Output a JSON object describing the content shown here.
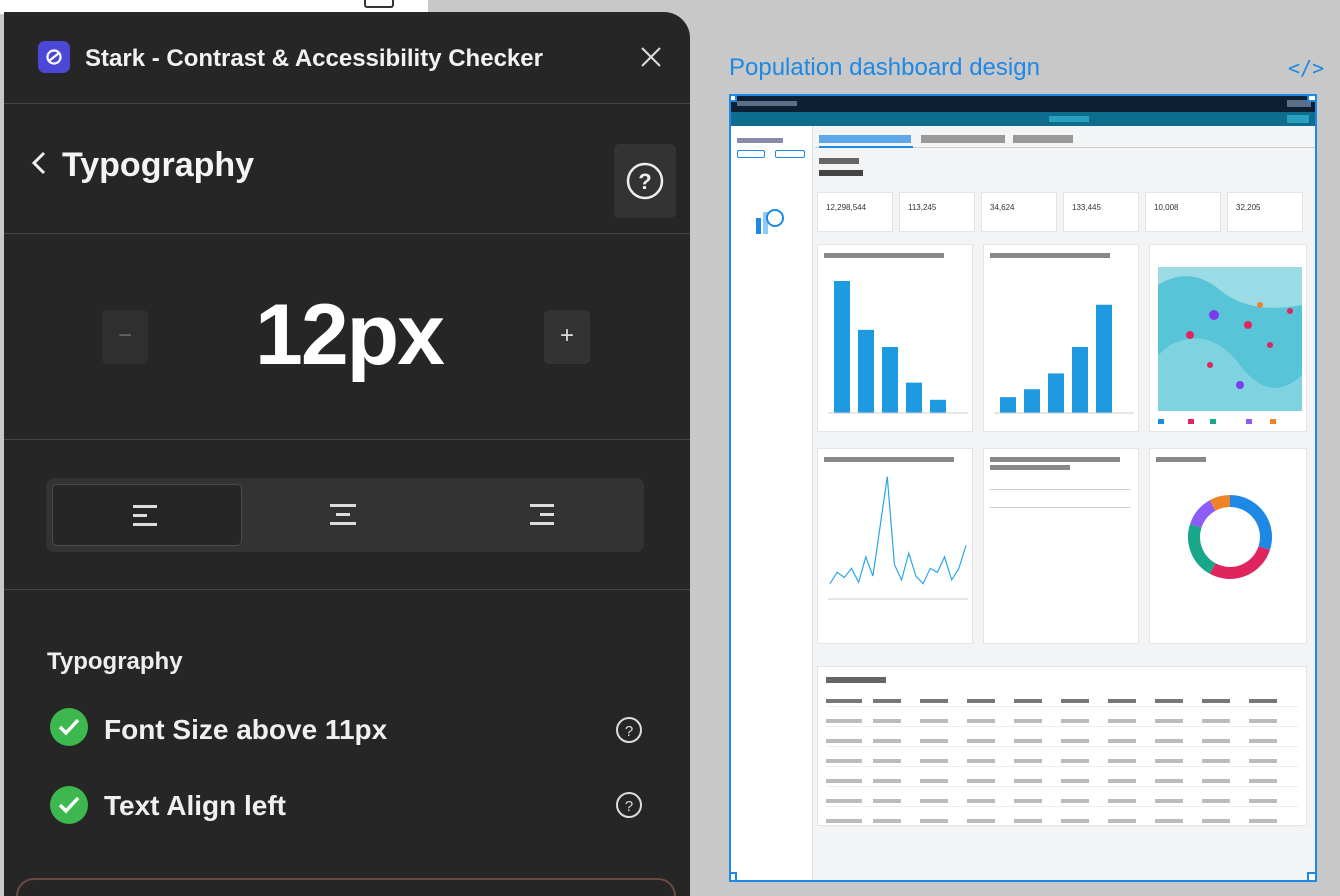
{
  "panel": {
    "app_title": "Stark - Contrast & Accessibility Checker",
    "nav_title": "Typography",
    "font_size": "12px",
    "minus_label": "−",
    "plus_label": "+",
    "section_title": "Typography",
    "checks": [
      {
        "label": "Font Size above 11px",
        "status": "pass"
      },
      {
        "label": "Text Align left",
        "status": "pass"
      }
    ],
    "alignment_options": [
      "left",
      "center",
      "right"
    ],
    "selected_alignment": "left",
    "colors": {
      "bg": "#262626",
      "logo": "#4b48d8",
      "pass": "#3cb84f"
    }
  },
  "canvas": {
    "frame_title": "Population dashboard design",
    "code_icon": "</>",
    "accent": "#1e88e5"
  },
  "dashboard": {
    "tabs": [
      "Risk stratification dashboard",
      "Patient's medical history",
      "Care gap analysis",
      "+"
    ],
    "kpis": [
      "12,298,544",
      "113,245",
      "34,624",
      "133,445",
      "10,008",
      "32,205"
    ],
    "card_titles": [
      "Patients population",
      "Chronic Heart Failure",
      "Patients with risk category by city",
      "Emergency visits",
      "Patients without CHD",
      "Chronic Factors",
      "Risk level by patient"
    ],
    "bar_chart_1": [
      100,
      63,
      50,
      23,
      10
    ],
    "bar_chart_2": [
      12,
      18,
      30,
      50,
      82
    ],
    "donut_colors": [
      "#1e88e5",
      "#e0245e",
      "#19a78a",
      "#8b5cf6",
      "#f0822a"
    ],
    "donut_values": [
      30,
      28,
      22,
      12,
      8
    ],
    "line_points": [
      20,
      35,
      28,
      40,
      22,
      55,
      30,
      95,
      160,
      45,
      25,
      60,
      30,
      20,
      40,
      35,
      55,
      25,
      40,
      70
    ],
    "table_rows": 6
  }
}
